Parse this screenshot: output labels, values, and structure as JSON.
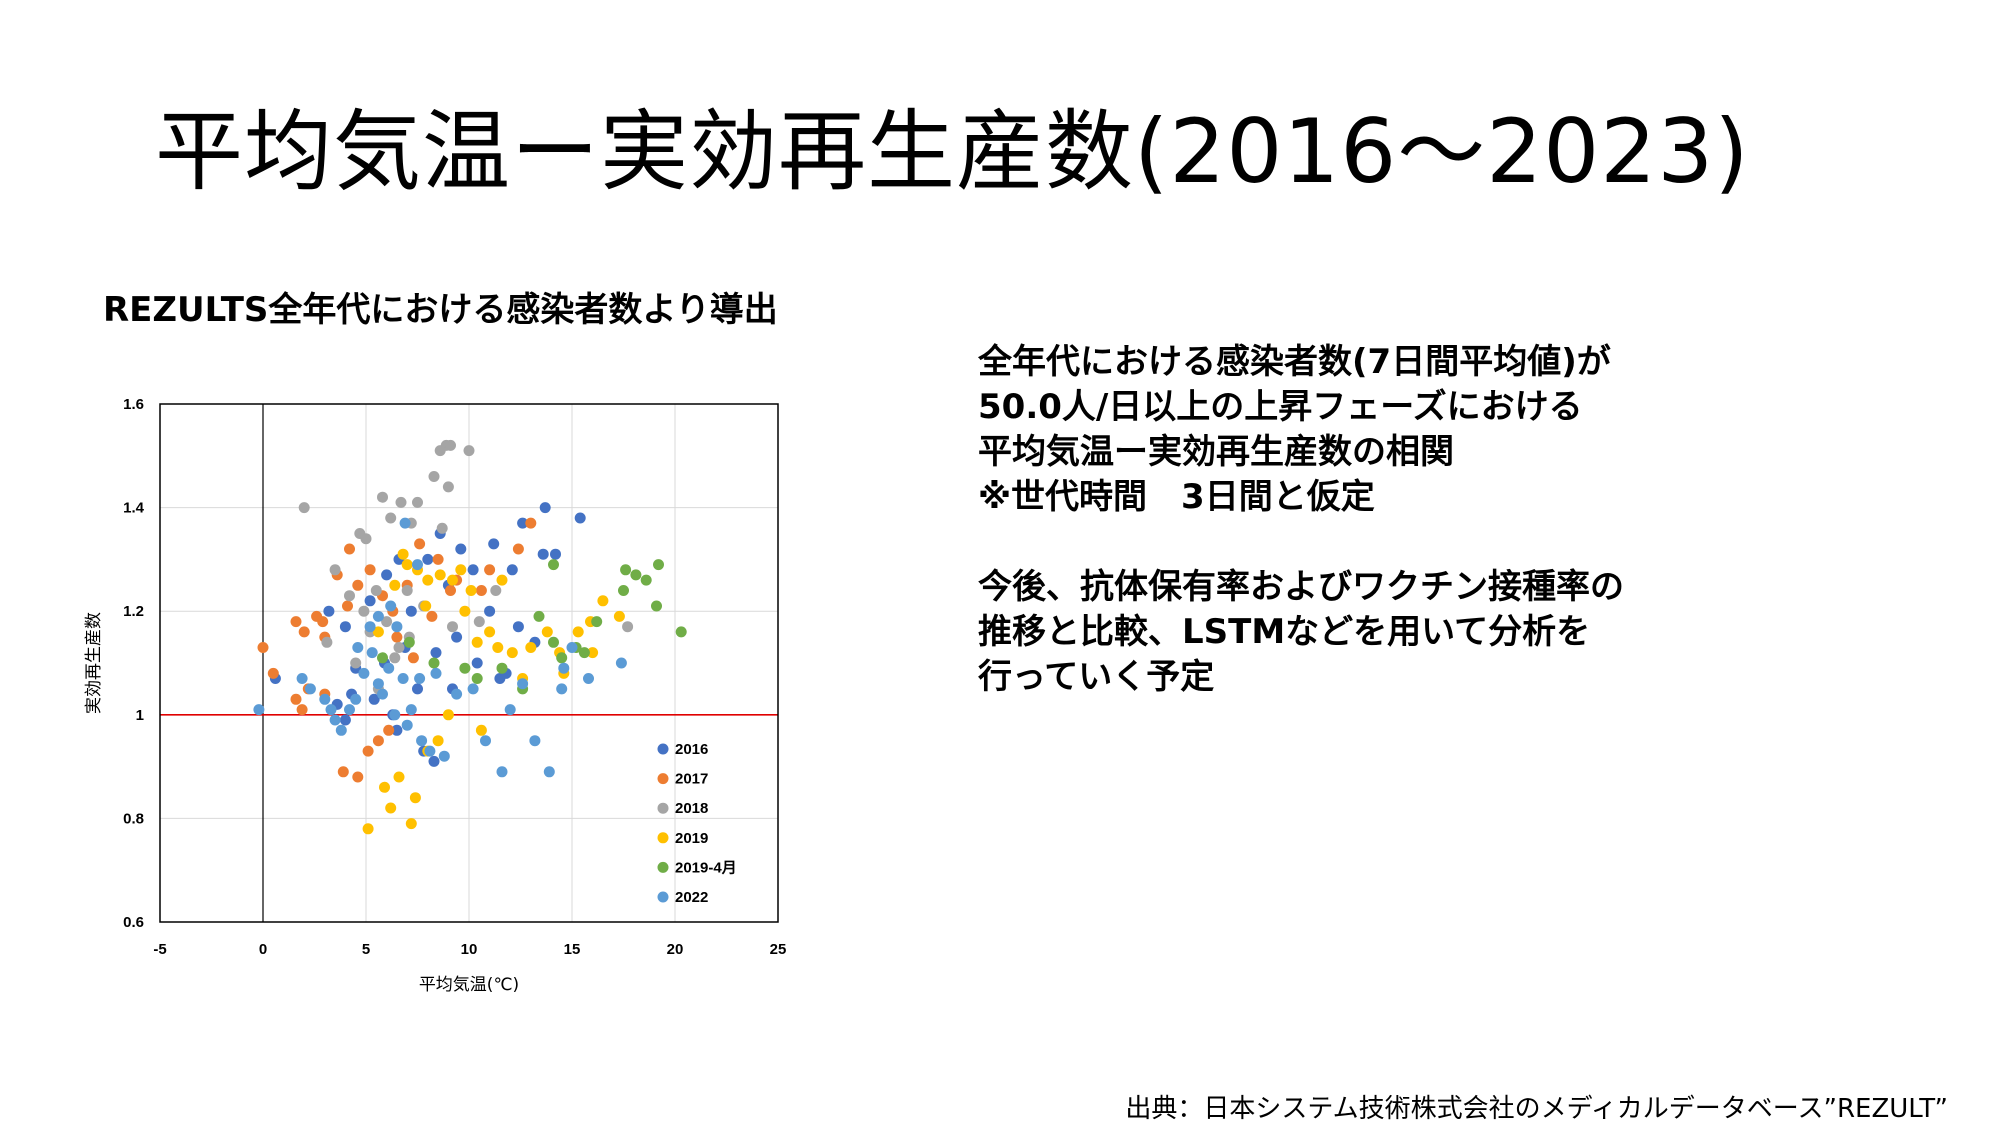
{
  "slide": {
    "title": "平均気温ー実効再生産数(2016～2023)",
    "subtitle": "REZULTS全年代における感染者数より導出",
    "description_lines": [
      "全年代における感染者数(7日間平均値)が",
      "50.0人/日以上の上昇フェーズにおける",
      "平均気温ー実効再生産数の相関",
      "※世代時間　3日間と仮定",
      "",
      "今後、抗体保有率およびワクチン接種率の",
      "推移と比較、LSTMなどを用いて分析を",
      "行っていく予定"
    ],
    "source": "出典：日本システム技術株式会社のメディカルデータベース”REZULT”"
  },
  "chart_data": {
    "type": "scatter",
    "xlabel": "平均気温(℃)",
    "ylabel": "実効再生産数",
    "xlim": [
      -5,
      25
    ],
    "ylim": [
      0.6,
      1.6
    ],
    "xticks": [
      -5,
      0,
      5,
      10,
      15,
      20,
      25
    ],
    "yticks": [
      0.6,
      0.8,
      1,
      1.2,
      1.4,
      1.6
    ],
    "ytick_labels": [
      "0.6",
      "0.8",
      "1",
      "1.2",
      "1.4",
      "1.6"
    ],
    "reference_line": {
      "y": 1,
      "color": "#e00000"
    },
    "grid": true,
    "legend_position": "inside-lower-right",
    "series": [
      {
        "name": "2016",
        "color": "#4472c4",
        "points": [
          [
            3.2,
            1.2
          ],
          [
            4.0,
            1.17
          ],
          [
            4.5,
            1.09
          ],
          [
            5.2,
            1.22
          ],
          [
            6.0,
            1.27
          ],
          [
            6.6,
            1.3
          ],
          [
            7.2,
            1.2
          ],
          [
            8.0,
            1.3
          ],
          [
            8.6,
            1.35
          ],
          [
            9.0,
            1.25
          ],
          [
            9.6,
            1.32
          ],
          [
            10.2,
            1.28
          ],
          [
            11.2,
            1.33
          ],
          [
            12.1,
            1.28
          ],
          [
            12.6,
            1.37
          ],
          [
            13.6,
            1.31
          ],
          [
            14.2,
            1.31
          ],
          [
            15.4,
            1.38
          ],
          [
            13.7,
            1.4
          ],
          [
            11.0,
            1.2
          ],
          [
            12.4,
            1.17
          ],
          [
            13.2,
            1.14
          ],
          [
            11.8,
            1.08
          ],
          [
            9.4,
            1.15
          ],
          [
            8.4,
            1.12
          ],
          [
            7.5,
            1.05
          ],
          [
            6.3,
            1.0
          ],
          [
            5.4,
            1.03
          ],
          [
            4.3,
            1.04
          ],
          [
            3.6,
            1.02
          ],
          [
            4.0,
            0.99
          ],
          [
            6.5,
            0.97
          ],
          [
            7.8,
            0.93
          ],
          [
            8.3,
            0.91
          ],
          [
            9.2,
            1.05
          ],
          [
            10.4,
            1.1
          ],
          [
            11.5,
            1.07
          ],
          [
            6.9,
            1.13
          ],
          [
            5.9,
            1.1
          ],
          [
            0.6,
            1.07
          ]
        ]
      },
      {
        "name": "2017",
        "color": "#ed7d31",
        "points": [
          [
            0.0,
            1.13
          ],
          [
            0.5,
            1.08
          ],
          [
            1.6,
            1.18
          ],
          [
            2.0,
            1.16
          ],
          [
            2.6,
            1.19
          ],
          [
            3.0,
            1.15
          ],
          [
            3.6,
            1.27
          ],
          [
            4.2,
            1.32
          ],
          [
            4.6,
            1.25
          ],
          [
            5.2,
            1.28
          ],
          [
            5.8,
            1.23
          ],
          [
            6.3,
            1.2
          ],
          [
            7.0,
            1.25
          ],
          [
            7.6,
            1.33
          ],
          [
            8.5,
            1.3
          ],
          [
            9.4,
            1.26
          ],
          [
            10.6,
            1.24
          ],
          [
            11.0,
            1.28
          ],
          [
            12.4,
            1.32
          ],
          [
            13.0,
            1.37
          ],
          [
            2.2,
            1.05
          ],
          [
            1.6,
            1.03
          ],
          [
            1.9,
            1.01
          ],
          [
            3.9,
            0.89
          ],
          [
            4.6,
            0.88
          ],
          [
            5.1,
            0.93
          ],
          [
            5.6,
            0.95
          ],
          [
            6.1,
            0.97
          ],
          [
            3.0,
            1.04
          ],
          [
            4.1,
            1.21
          ],
          [
            6.5,
            1.15
          ],
          [
            7.3,
            1.11
          ],
          [
            2.9,
            1.18
          ],
          [
            8.2,
            1.19
          ],
          [
            9.1,
            1.24
          ]
        ]
      },
      {
        "name": "2018",
        "color": "#a5a5a5",
        "points": [
          [
            2.0,
            1.4
          ],
          [
            3.5,
            1.28
          ],
          [
            4.2,
            1.23
          ],
          [
            4.7,
            1.35
          ],
          [
            5.0,
            1.34
          ],
          [
            5.8,
            1.42
          ],
          [
            6.2,
            1.38
          ],
          [
            6.7,
            1.41
          ],
          [
            7.2,
            1.37
          ],
          [
            7.5,
            1.41
          ],
          [
            8.3,
            1.46
          ],
          [
            8.9,
            1.52
          ],
          [
            9.1,
            1.52
          ],
          [
            8.6,
            1.51
          ],
          [
            9.0,
            1.44
          ],
          [
            10.0,
            1.51
          ],
          [
            8.7,
            1.36
          ],
          [
            7.0,
            1.24
          ],
          [
            6.0,
            1.18
          ],
          [
            5.2,
            1.16
          ],
          [
            4.5,
            1.1
          ],
          [
            5.6,
            1.05
          ],
          [
            6.6,
            1.13
          ],
          [
            10.5,
            1.18
          ],
          [
            9.2,
            1.17
          ],
          [
            7.8,
            1.21
          ],
          [
            11.3,
            1.24
          ],
          [
            17.7,
            1.17
          ],
          [
            3.1,
            1.14
          ],
          [
            4.9,
            1.2
          ],
          [
            5.5,
            1.24
          ],
          [
            6.4,
            1.11
          ],
          [
            7.1,
            1.15
          ]
        ]
      },
      {
        "name": "2019",
        "color": "#ffc000",
        "points": [
          [
            5.1,
            0.78
          ],
          [
            5.9,
            0.86
          ],
          [
            6.2,
            0.82
          ],
          [
            6.6,
            0.88
          ],
          [
            7.2,
            0.79
          ],
          [
            7.4,
            0.84
          ],
          [
            8.0,
            0.93
          ],
          [
            8.5,
            0.95
          ],
          [
            9.0,
            1.0
          ],
          [
            10.6,
            0.97
          ],
          [
            7.0,
            1.29
          ],
          [
            7.5,
            1.28
          ],
          [
            8.0,
            1.26
          ],
          [
            8.6,
            1.27
          ],
          [
            9.2,
            1.26
          ],
          [
            9.6,
            1.28
          ],
          [
            10.1,
            1.24
          ],
          [
            11.6,
            1.26
          ],
          [
            10.4,
            1.14
          ],
          [
            11.0,
            1.16
          ],
          [
            12.1,
            1.12
          ],
          [
            13.0,
            1.13
          ],
          [
            13.8,
            1.16
          ],
          [
            14.4,
            1.12
          ],
          [
            15.3,
            1.16
          ],
          [
            15.9,
            1.18
          ],
          [
            17.3,
            1.19
          ],
          [
            16.5,
            1.22
          ],
          [
            16.0,
            1.12
          ],
          [
            14.6,
            1.08
          ],
          [
            12.6,
            1.07
          ],
          [
            11.4,
            1.13
          ],
          [
            6.4,
            1.25
          ],
          [
            7.9,
            1.21
          ],
          [
            9.8,
            1.2
          ],
          [
            6.8,
            1.31
          ],
          [
            5.6,
            1.16
          ]
        ]
      },
      {
        "name": "2019-4月",
        "color": "#70ad47",
        "points": [
          [
            5.8,
            1.11
          ],
          [
            7.1,
            1.14
          ],
          [
            8.3,
            1.1
          ],
          [
            9.8,
            1.09
          ],
          [
            11.6,
            1.09
          ],
          [
            12.6,
            1.05
          ],
          [
            14.1,
            1.14
          ],
          [
            14.5,
            1.11
          ],
          [
            15.2,
            1.13
          ],
          [
            16.2,
            1.18
          ],
          [
            17.5,
            1.24
          ],
          [
            17.6,
            1.28
          ],
          [
            18.1,
            1.27
          ],
          [
            18.6,
            1.26
          ],
          [
            19.2,
            1.29
          ],
          [
            19.1,
            1.21
          ],
          [
            20.3,
            1.16
          ],
          [
            14.1,
            1.29
          ],
          [
            15.6,
            1.12
          ],
          [
            10.4,
            1.07
          ],
          [
            13.4,
            1.19
          ]
        ]
      },
      {
        "name": "2022",
        "color": "#5b9bd5",
        "points": [
          [
            -0.2,
            1.01
          ],
          [
            1.9,
            1.07
          ],
          [
            2.3,
            1.05
          ],
          [
            3.0,
            1.03
          ],
          [
            3.5,
            0.99
          ],
          [
            3.8,
            0.97
          ],
          [
            4.2,
            1.01
          ],
          [
            4.5,
            1.03
          ],
          [
            4.9,
            1.08
          ],
          [
            5.3,
            1.12
          ],
          [
            5.6,
            1.06
          ],
          [
            5.8,
            1.04
          ],
          [
            6.1,
            1.09
          ],
          [
            6.4,
            1.0
          ],
          [
            6.8,
            1.07
          ],
          [
            7.0,
            0.98
          ],
          [
            7.2,
            1.01
          ],
          [
            7.7,
            0.95
          ],
          [
            8.1,
            0.93
          ],
          [
            8.4,
            1.08
          ],
          [
            8.8,
            0.92
          ],
          [
            9.4,
            1.04
          ],
          [
            10.2,
            1.05
          ],
          [
            10.8,
            0.95
          ],
          [
            11.6,
            0.89
          ],
          [
            12.0,
            1.01
          ],
          [
            12.6,
            1.06
          ],
          [
            13.2,
            0.95
          ],
          [
            13.9,
            0.89
          ],
          [
            14.5,
            1.05
          ],
          [
            14.6,
            1.09
          ],
          [
            15.0,
            1.13
          ],
          [
            15.8,
            1.07
          ],
          [
            17.4,
            1.1
          ],
          [
            6.9,
            1.37
          ],
          [
            7.5,
            1.29
          ],
          [
            6.2,
            1.21
          ],
          [
            5.6,
            1.19
          ],
          [
            4.6,
            1.13
          ],
          [
            5.2,
            1.17
          ],
          [
            6.5,
            1.17
          ],
          [
            3.3,
            1.01
          ],
          [
            7.6,
            1.07
          ]
        ]
      }
    ]
  }
}
